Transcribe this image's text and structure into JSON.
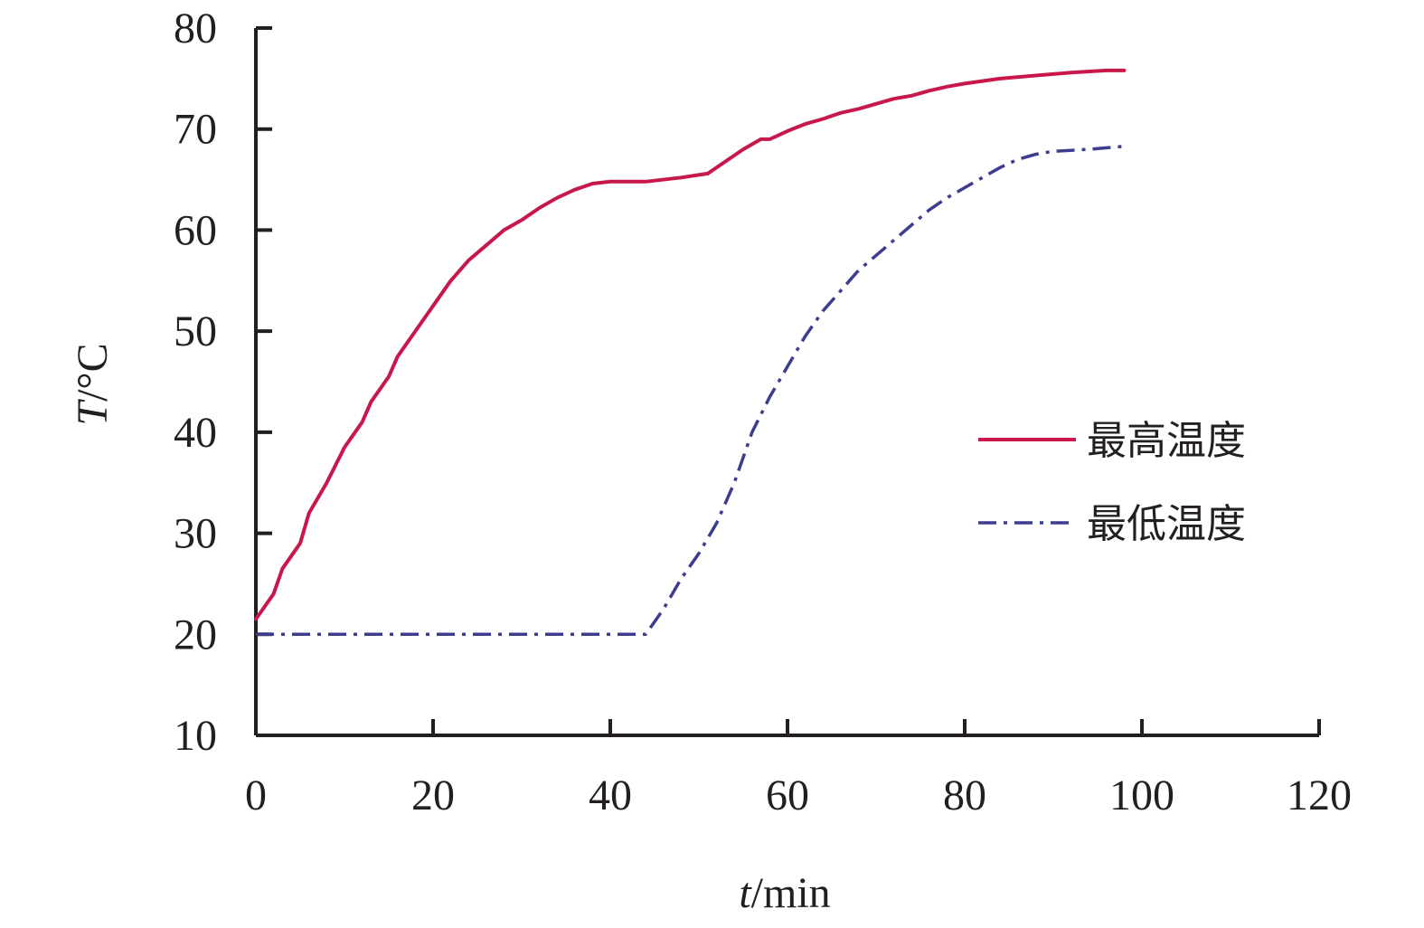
{
  "chart_data": {
    "type": "line",
    "xlabel": {
      "var": "t",
      "unit": "/min"
    },
    "ylabel": {
      "var": "T",
      "unit": "/°C"
    },
    "xlim": [
      0,
      120
    ],
    "ylim": [
      10,
      80
    ],
    "xticks": [
      "0",
      "20",
      "40",
      "60",
      "80",
      "100",
      "120"
    ],
    "yticks": [
      "10",
      "20",
      "30",
      "40",
      "50",
      "60",
      "70",
      "80"
    ],
    "grid": false,
    "legend_position": "right",
    "series": [
      {
        "name": "最高温度",
        "color": "#c8174a",
        "style": "solid",
        "points": [
          [
            0,
            21.5
          ],
          [
            2,
            24
          ],
          [
            3,
            26.5
          ],
          [
            5,
            29
          ],
          [
            6,
            32
          ],
          [
            8,
            35
          ],
          [
            10,
            38.5
          ],
          [
            12,
            41
          ],
          [
            13,
            43
          ],
          [
            15,
            45.5
          ],
          [
            16,
            47.5
          ],
          [
            18,
            50
          ],
          [
            20,
            52.5
          ],
          [
            22,
            55
          ],
          [
            24,
            57
          ],
          [
            26,
            58.5
          ],
          [
            28,
            60
          ],
          [
            30,
            61
          ],
          [
            32,
            62.2
          ],
          [
            34,
            63.2
          ],
          [
            36,
            64
          ],
          [
            38,
            64.6
          ],
          [
            40,
            64.8
          ],
          [
            44,
            64.8
          ],
          [
            48,
            65.2
          ],
          [
            51,
            65.6
          ],
          [
            53,
            66.8
          ],
          [
            55,
            68
          ],
          [
            57,
            69
          ],
          [
            58,
            69
          ],
          [
            60,
            69.8
          ],
          [
            62,
            70.5
          ],
          [
            64,
            71
          ],
          [
            66,
            71.6
          ],
          [
            68,
            72
          ],
          [
            70,
            72.5
          ],
          [
            72,
            73
          ],
          [
            74,
            73.3
          ],
          [
            76,
            73.8
          ],
          [
            78,
            74.2
          ],
          [
            80,
            74.5
          ],
          [
            84,
            75
          ],
          [
            88,
            75.3
          ],
          [
            92,
            75.6
          ],
          [
            96,
            75.8
          ],
          [
            98,
            75.8
          ]
        ]
      },
      {
        "name": "最低温度",
        "color": "#3d3d8f",
        "style": "dashdot",
        "points": [
          [
            0,
            20
          ],
          [
            44,
            20
          ],
          [
            46,
            22.5
          ],
          [
            48,
            25.5
          ],
          [
            50,
            28
          ],
          [
            52,
            31
          ],
          [
            54,
            35
          ],
          [
            56,
            40
          ],
          [
            58,
            43.5
          ],
          [
            60,
            46.5
          ],
          [
            62,
            49.5
          ],
          [
            64,
            52
          ],
          [
            66,
            54
          ],
          [
            68,
            56
          ],
          [
            70,
            57.5
          ],
          [
            72,
            59
          ],
          [
            74,
            60.5
          ],
          [
            76,
            62
          ],
          [
            78,
            63.2
          ],
          [
            80,
            64.2
          ],
          [
            82,
            65.2
          ],
          [
            84,
            66.2
          ],
          [
            86,
            67
          ],
          [
            88,
            67.5
          ],
          [
            90,
            67.8
          ],
          [
            94,
            68
          ],
          [
            98,
            68.3
          ]
        ]
      }
    ]
  }
}
